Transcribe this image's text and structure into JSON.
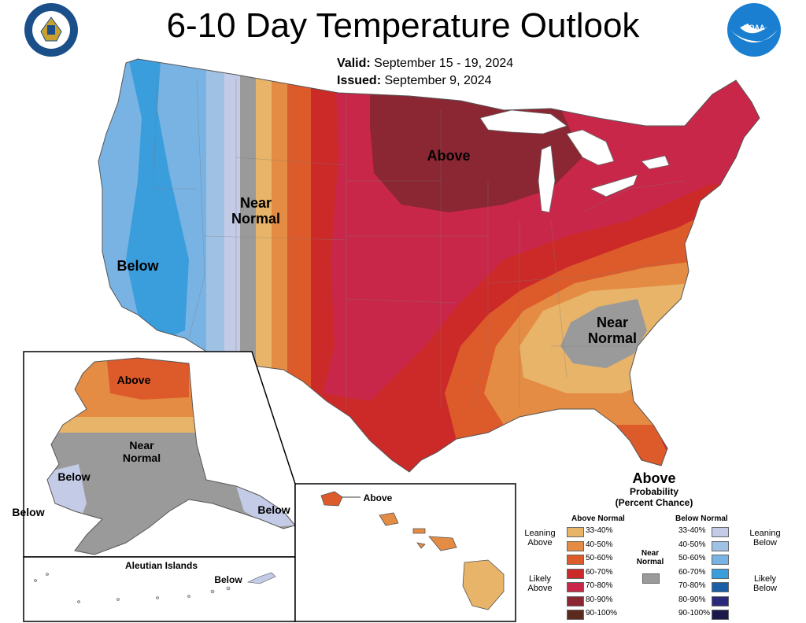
{
  "title": "6-10 Day Temperature Outlook",
  "valid": {
    "label": "Valid:",
    "value": "September 15 - 19, 2024"
  },
  "issued": {
    "label": "Issued:",
    "value": "September 9, 2024"
  },
  "map_labels": {
    "conus_above": "Above",
    "conus_near_normal_west": "Near Normal",
    "conus_below": "Below",
    "conus_near_normal_se": "Near Normal",
    "alaska_above": "Above",
    "alaska_near_normal": "Near Normal",
    "alaska_below_west": "Below",
    "alaska_below_far_west": "Below",
    "alaska_below_southeast": "Below",
    "aleutian_title": "Aleutian Islands",
    "aleutian_below": "Below",
    "hawaii_above": "Above"
  },
  "legend": {
    "heading": "Above",
    "sub1": "Probability",
    "sub2": "(Percent Chance)",
    "above_header": "Above Normal",
    "below_header": "Below Normal",
    "near_normal": "Near Normal",
    "leaning_above": "Leaning Above",
    "likely_above": "Likely Above",
    "leaning_below": "Leaning Below",
    "likely_below": "Likely Below",
    "above_levels": [
      {
        "range": "33-40%",
        "color": "#e8b469"
      },
      {
        "range": "40-50%",
        "color": "#e48c44"
      },
      {
        "range": "50-60%",
        "color": "#dd5a2a"
      },
      {
        "range": "60-70%",
        "color": "#cc2a28"
      },
      {
        "range": "70-80%",
        "color": "#c9274a"
      },
      {
        "range": "80-90%",
        "color": "#8b2633"
      },
      {
        "range": "90-100%",
        "color": "#5a2a1c"
      }
    ],
    "below_levels": [
      {
        "range": "33-40%",
        "color": "#c3cbe6"
      },
      {
        "range": "40-50%",
        "color": "#9fc1e3"
      },
      {
        "range": "50-60%",
        "color": "#78b3e3"
      },
      {
        "range": "60-70%",
        "color": "#3a9ddc"
      },
      {
        "range": "70-80%",
        "color": "#1a5ea8"
      },
      {
        "range": "80-90%",
        "color": "#2a2a7a"
      },
      {
        "range": "90-100%",
        "color": "#1c1a4a"
      }
    ],
    "near_normal_color": "#9a9a9a"
  },
  "logos": {
    "doc": "department-of-commerce-seal",
    "noaa": "NOAA"
  }
}
